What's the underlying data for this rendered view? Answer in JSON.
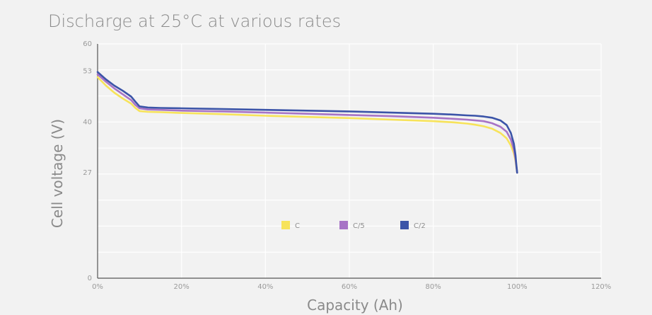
{
  "chart_data": {
    "type": "line",
    "title": "Discharge at 25°C at various rates",
    "xlabel": "Capacity (Ah)",
    "ylabel": "Cell voltage (V)",
    "xlim": [
      0,
      120
    ],
    "ylim": [
      0,
      60
    ],
    "x_ticks": [
      "0%",
      "20%",
      "40%",
      "60%",
      "80%",
      "100%",
      "120%"
    ],
    "x_tick_values": [
      0,
      20,
      40,
      60,
      80,
      100,
      120
    ],
    "y_ticks": [
      "0",
      "27",
      "40",
      "53",
      "60"
    ],
    "y_tick_values": [
      0,
      27,
      40,
      53,
      60
    ],
    "grid": true,
    "legend_position": "center",
    "series": [
      {
        "name": "C",
        "color": "#f7e35a",
        "x": [
          0,
          2,
          4,
          6,
          8,
          9,
          10,
          12,
          15,
          20,
          30,
          40,
          50,
          60,
          70,
          80,
          85,
          88,
          90,
          92,
          94,
          96,
          97.5,
          98.5,
          99.2,
          99.6,
          99.8,
          100
        ],
        "y": [
          51.5,
          49.3,
          47.5,
          46,
          44.7,
          43.6,
          42.8,
          42.6,
          42.5,
          42.3,
          42,
          41.6,
          41.3,
          41,
          40.6,
          40.2,
          39.9,
          39.6,
          39.3,
          38.9,
          38.3,
          37.2,
          35.8,
          34,
          32,
          30,
          28.5,
          27
        ]
      },
      {
        "name": "C/5",
        "color": "#a774c6",
        "x": [
          0,
          2,
          4,
          6,
          8,
          9,
          10,
          12,
          15,
          20,
          30,
          40,
          50,
          60,
          70,
          80,
          85,
          88,
          90,
          92,
          94,
          96,
          97.5,
          98.5,
          99.2,
          99.6,
          99.8,
          100
        ],
        "y": [
          52.2,
          50.3,
          48.6,
          47.1,
          45.6,
          44.4,
          43.5,
          43.2,
          43.1,
          42.9,
          42.7,
          42.4,
          42.1,
          41.8,
          41.5,
          41.1,
          40.8,
          40.6,
          40.4,
          40.2,
          39.7,
          38.8,
          37.5,
          35.5,
          33,
          30.5,
          28.8,
          27
        ]
      },
      {
        "name": "C/2",
        "color": "#3b54a8",
        "x": [
          0,
          2,
          4,
          6,
          8,
          9,
          10,
          12,
          15,
          20,
          30,
          40,
          50,
          60,
          70,
          80,
          85,
          88,
          90,
          92,
          94,
          96,
          97.5,
          98.5,
          99.2,
          99.6,
          99.8,
          100
        ],
        "y": [
          52.8,
          50.9,
          49.3,
          48,
          46.5,
          45.2,
          44,
          43.7,
          43.6,
          43.5,
          43.3,
          43.1,
          42.9,
          42.7,
          42.4,
          42.1,
          41.9,
          41.7,
          41.6,
          41.4,
          41.1,
          40.4,
          39.2,
          37.2,
          34.5,
          31.5,
          29.2,
          27
        ]
      }
    ]
  }
}
